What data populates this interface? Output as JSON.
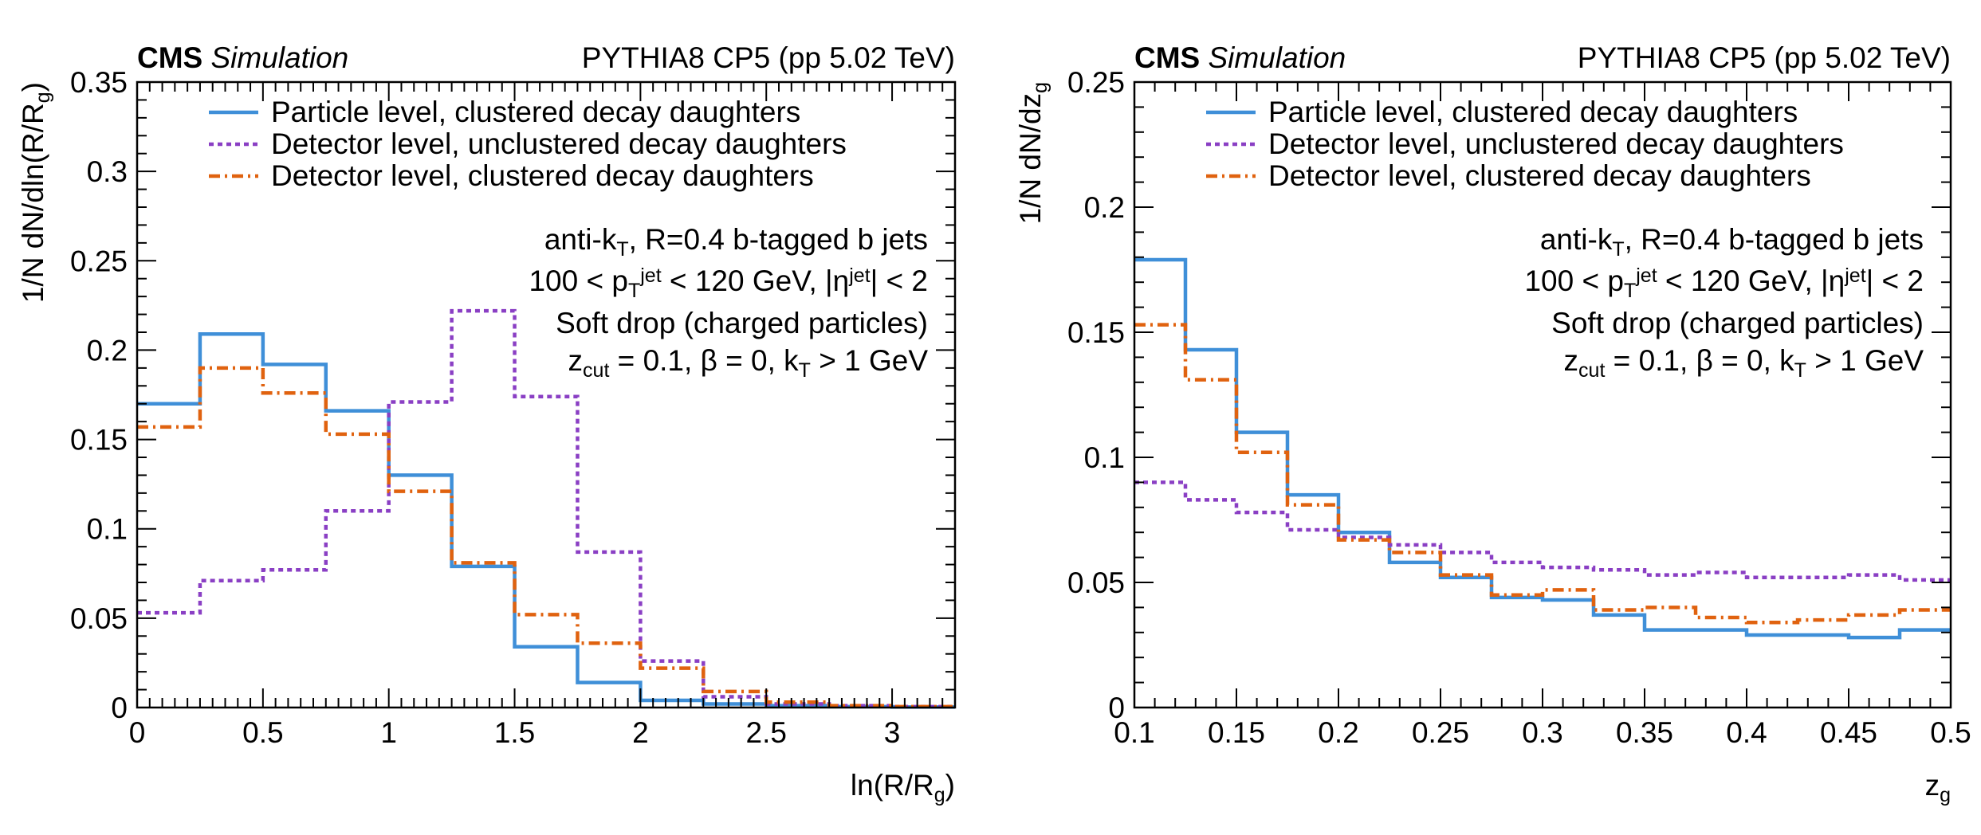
{
  "colors": {
    "particle": "#3f8fd8",
    "det_unclustered": "#8a3fc4",
    "det_clustered": "#e0620f"
  },
  "chart_data": [
    {
      "type": "line",
      "style": "step-histogram",
      "header": {
        "cms": "CMS",
        "simulation": "Simulation",
        "right": "PYTHIA8 CP5 (pp 5.02 TeV)"
      },
      "xlabel": "ln(R/R_g)",
      "ylabel": "1/N dN/dln(R/R_g)",
      "xlim": [
        0,
        3.25
      ],
      "ylim": [
        0,
        0.35
      ],
      "xticks": [
        0,
        0.5,
        1,
        1.5,
        2,
        2.5,
        3
      ],
      "xtick_labels": [
        "0",
        "0.5",
        "1",
        "1.5",
        "2",
        "2.5",
        "3"
      ],
      "yticks": [
        0,
        0.05,
        0.1,
        0.15,
        0.2,
        0.25,
        0.3,
        0.35
      ],
      "ytick_labels": [
        "0",
        "0.05",
        "0.1",
        "0.15",
        "0.2",
        "0.25",
        "0.3",
        "0.35"
      ],
      "bin_edges": [
        0,
        0.25,
        0.5,
        0.75,
        1.0,
        1.25,
        1.5,
        1.75,
        2.0,
        2.25,
        2.5,
        2.75,
        3.0,
        3.25
      ],
      "series": [
        {
          "name": "Particle level, clustered decay daughters",
          "color_key": "particle",
          "dash": "solid",
          "values": [
            0.17,
            0.209,
            0.192,
            0.166,
            0.13,
            0.079,
            0.034,
            0.014,
            0.004,
            0.002,
            0.001,
            0.0005,
            0.0003
          ]
        },
        {
          "name": "Detector level, unclustered decay daughters",
          "color_key": "det_unclustered",
          "dash": "dot",
          "values": [
            0.053,
            0.071,
            0.077,
            0.11,
            0.171,
            0.222,
            0.174,
            0.087,
            0.026,
            0.006,
            0.002,
            0.001,
            0.0005
          ]
        },
        {
          "name": "Detector level, clustered decay daughters",
          "color_key": "det_clustered",
          "dash": "dashdot",
          "values": [
            0.157,
            0.19,
            0.176,
            0.153,
            0.121,
            0.081,
            0.052,
            0.036,
            0.022,
            0.009,
            0.003,
            0.001,
            0.0005
          ]
        }
      ],
      "annotations": [
        "anti-k_T, R=0.4 b-tagged b jets",
        "100 < p_T^jet < 120 GeV, |η^jet| < 2",
        "Soft drop (charged particles)",
        "z_cut = 0.1, β = 0, k_T > 1 GeV"
      ]
    },
    {
      "type": "line",
      "style": "step-histogram",
      "header": {
        "cms": "CMS",
        "simulation": "Simulation",
        "right": "PYTHIA8 CP5 (pp 5.02 TeV)"
      },
      "xlabel": "z_g",
      "ylabel": "1/N dN/dz_g",
      "xlim": [
        0.1,
        0.5
      ],
      "ylim": [
        0,
        0.25
      ],
      "xticks": [
        0.1,
        0.15,
        0.2,
        0.25,
        0.3,
        0.35,
        0.4,
        0.45,
        0.5
      ],
      "xtick_labels": [
        "0.1",
        "0.15",
        "0.2",
        "0.25",
        "0.3",
        "0.35",
        "0.4",
        "0.45",
        "0.5"
      ],
      "yticks": [
        0,
        0.05,
        0.1,
        0.15,
        0.2,
        0.25
      ],
      "ytick_labels": [
        "0",
        "0.05",
        "0.1",
        "0.15",
        "0.2",
        "0.25"
      ],
      "bin_edges": [
        0.1,
        0.125,
        0.15,
        0.175,
        0.2,
        0.225,
        0.25,
        0.275,
        0.3,
        0.325,
        0.35,
        0.375,
        0.4,
        0.425,
        0.45,
        0.475,
        0.5
      ],
      "series": [
        {
          "name": "Particle level, clustered decay daughters",
          "color_key": "particle",
          "dash": "solid",
          "values": [
            0.179,
            0.143,
            0.11,
            0.085,
            0.07,
            0.058,
            0.052,
            0.044,
            0.043,
            0.037,
            0.031,
            0.031,
            0.029,
            0.029,
            0.028,
            0.031
          ]
        },
        {
          "name": "Detector level, unclustered decay daughters",
          "color_key": "det_unclustered",
          "dash": "dot",
          "values": [
            0.09,
            0.083,
            0.078,
            0.071,
            0.068,
            0.065,
            0.062,
            0.058,
            0.056,
            0.055,
            0.053,
            0.054,
            0.052,
            0.052,
            0.053,
            0.051
          ]
        },
        {
          "name": "Detector level, clustered decay daughters",
          "color_key": "det_clustered",
          "dash": "dashdot",
          "values": [
            0.153,
            0.131,
            0.102,
            0.081,
            0.067,
            0.062,
            0.053,
            0.045,
            0.047,
            0.039,
            0.04,
            0.036,
            0.034,
            0.035,
            0.037,
            0.039
          ]
        }
      ],
      "annotations": [
        "anti-k_T, R=0.4 b-tagged b jets",
        "100 < p_T^jet < 120 GeV, |η^jet| < 2",
        "Soft drop (charged particles)",
        "z_cut = 0.1, β = 0, k_T > 1 GeV"
      ]
    }
  ]
}
